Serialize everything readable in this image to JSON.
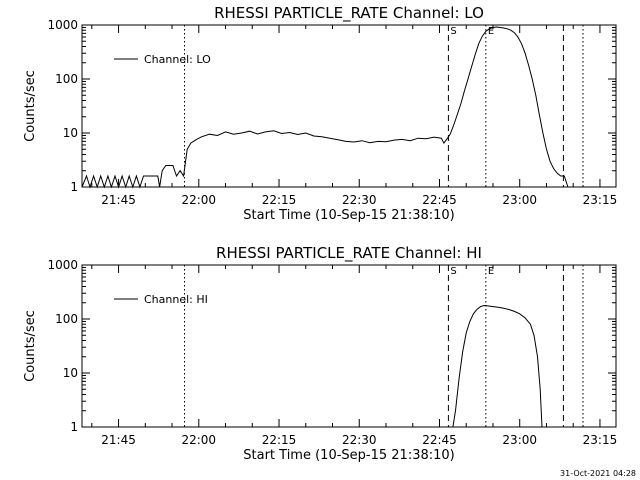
{
  "chart_data": [
    {
      "type": "line",
      "title": "RHESSI PARTICLE_RATE Channel: LO",
      "xlabel": "Start Time (10-Sep-15 21:38:10)",
      "ylabel": "Counts/sec",
      "y_scale": "log",
      "ylim": [
        1,
        1000
      ],
      "xlim": [
        "21:38:10",
        "23:18:00"
      ],
      "x_ticks": [
        "21:45",
        "22:00",
        "22:15",
        "22:30",
        "22:45",
        "23:00",
        "23:15"
      ],
      "y_ticks": [
        "1",
        "10",
        "100",
        "1000"
      ],
      "legend": {
        "position": "top-left",
        "entries": [
          "Channel: LO"
        ]
      },
      "markers": [
        {
          "label": "S",
          "time": "22:46:40",
          "style": "dashed"
        },
        {
          "label": "E",
          "time": "22:53:40",
          "style": "dotted"
        },
        {
          "label": "",
          "time": "21:57:20",
          "style": "dotted"
        },
        {
          "label": "",
          "time": "23:08:10",
          "style": "dashed"
        },
        {
          "label": "",
          "time": "23:11:50",
          "style": "dotted"
        }
      ],
      "series": [
        {
          "name": "Channel: LO",
          "points": [
            [
              "21:38:10",
              1
            ],
            [
              "21:39:00",
              1.6
            ],
            [
              "21:39:40",
              1
            ],
            [
              "21:40:20",
              1.6
            ],
            [
              "21:41:00",
              1
            ],
            [
              "21:41:40",
              1.6
            ],
            [
              "21:42:20",
              1
            ],
            [
              "21:43:00",
              1.6
            ],
            [
              "21:43:40",
              1
            ],
            [
              "21:44:20",
              1.6
            ],
            [
              "21:45:00",
              1
            ],
            [
              "21:45:40",
              1.6
            ],
            [
              "21:46:20",
              1
            ],
            [
              "21:47:00",
              1.6
            ],
            [
              "21:47:40",
              1
            ],
            [
              "21:48:20",
              1.6
            ],
            [
              "21:49:00",
              1
            ],
            [
              "21:49:40",
              1.6
            ],
            [
              "21:50:20",
              1.6
            ],
            [
              "21:51:00",
              1.6
            ],
            [
              "21:51:40",
              1.6
            ],
            [
              "21:52:20",
              1.6
            ],
            [
              "21:52:40",
              1
            ],
            [
              "21:53:10",
              2.0
            ],
            [
              "21:53:50",
              2.5
            ],
            [
              "21:54:30",
              2.5
            ],
            [
              "21:55:10",
              2.5
            ],
            [
              "21:55:50",
              1.6
            ],
            [
              "21:56:30",
              2.0
            ],
            [
              "21:57:10",
              1.6
            ],
            [
              "21:57:50",
              5.0
            ],
            [
              "21:58:30",
              6.5
            ],
            [
              "21:59:30",
              7.5
            ],
            [
              "22:00:30",
              8.5
            ],
            [
              "22:02:00",
              9.5
            ],
            [
              "22:03:30",
              9.0
            ],
            [
              "22:05:00",
              10.5
            ],
            [
              "22:06:30",
              9.5
            ],
            [
              "22:08:00",
              10.0
            ],
            [
              "22:09:30",
              10.8
            ],
            [
              "22:11:00",
              9.6
            ],
            [
              "22:12:30",
              10.5
            ],
            [
              "22:14:00",
              11.0
            ],
            [
              "22:15:30",
              9.8
            ],
            [
              "22:17:00",
              10.2
            ],
            [
              "22:18:30",
              9.4
            ],
            [
              "22:20:00",
              10.0
            ],
            [
              "22:21:30",
              8.8
            ],
            [
              "22:23:00",
              8.5
            ],
            [
              "22:24:30",
              8.0
            ],
            [
              "22:26:00",
              7.5
            ],
            [
              "22:27:30",
              7.0
            ],
            [
              "22:29:00",
              6.8
            ],
            [
              "22:30:30",
              7.2
            ],
            [
              "22:32:00",
              6.6
            ],
            [
              "22:33:30",
              7.0
            ],
            [
              "22:35:00",
              6.9
            ],
            [
              "22:36:30",
              7.4
            ],
            [
              "22:38:00",
              7.6
            ],
            [
              "22:39:30",
              7.2
            ],
            [
              "22:41:00",
              8.0
            ],
            [
              "22:42:30",
              7.8
            ],
            [
              "22:44:00",
              8.4
            ],
            [
              "22:45:20",
              8.0
            ],
            [
              "22:45:50",
              6.5
            ],
            [
              "22:46:30",
              8.0
            ],
            [
              "22:47:00",
              9.5
            ],
            [
              "22:47:40",
              14
            ],
            [
              "22:48:20",
              22
            ],
            [
              "22:49:00",
              35
            ],
            [
              "22:49:40",
              60
            ],
            [
              "22:50:20",
              100
            ],
            [
              "22:51:00",
              170
            ],
            [
              "22:51:40",
              280
            ],
            [
              "22:52:20",
              450
            ],
            [
              "22:53:00",
              620
            ],
            [
              "22:53:40",
              760
            ],
            [
              "22:54:20",
              850
            ],
            [
              "22:55:00",
              900
            ],
            [
              "22:55:40",
              920
            ],
            [
              "22:56:20",
              900
            ],
            [
              "22:57:00",
              880
            ],
            [
              "22:57:40",
              850
            ],
            [
              "22:58:20",
              800
            ],
            [
              "22:59:00",
              720
            ],
            [
              "22:59:40",
              600
            ],
            [
              "23:00:20",
              450
            ],
            [
              "23:01:00",
              300
            ],
            [
              "23:01:40",
              180
            ],
            [
              "23:02:20",
              100
            ],
            [
              "23:03:00",
              50
            ],
            [
              "23:03:40",
              22
            ],
            [
              "23:04:20",
              10
            ],
            [
              "23:05:00",
              5
            ],
            [
              "23:05:40",
              3
            ],
            [
              "23:06:20",
              2.2
            ],
            [
              "23:07:00",
              1.8
            ],
            [
              "23:07:40",
              1.6
            ],
            [
              "23:08:20",
              1.6
            ],
            [
              "23:09:00",
              1
            ],
            [
              "23:10:00",
              1
            ],
            [
              "23:11:00",
              1
            ],
            [
              "23:12:00",
              1
            ]
          ]
        }
      ]
    },
    {
      "type": "line",
      "title": "RHESSI PARTICLE_RATE Channel: HI",
      "xlabel": "Start Time (10-Sep-15 21:38:10)",
      "ylabel": "Counts/sec",
      "y_scale": "log",
      "ylim": [
        1,
        1000
      ],
      "xlim": [
        "21:38:10",
        "23:18:00"
      ],
      "x_ticks": [
        "21:45",
        "22:00",
        "22:15",
        "22:30",
        "22:45",
        "23:00",
        "23:15"
      ],
      "y_ticks": [
        "1",
        "10",
        "100",
        "1000"
      ],
      "legend": {
        "position": "top-left",
        "entries": [
          "Channel: HI"
        ]
      },
      "markers": [
        {
          "label": "S",
          "time": "22:46:40",
          "style": "dashed"
        },
        {
          "label": "E",
          "time": "22:53:40",
          "style": "dotted"
        },
        {
          "label": "",
          "time": "21:57:20",
          "style": "dotted"
        },
        {
          "label": "",
          "time": "23:08:10",
          "style": "dashed"
        },
        {
          "label": "",
          "time": "23:11:50",
          "style": "dotted"
        }
      ],
      "series": [
        {
          "name": "Channel: HI",
          "points": [
            [
              "22:47:30",
              1
            ],
            [
              "22:48:00",
              2
            ],
            [
              "22:48:40",
              8
            ],
            [
              "22:49:20",
              25
            ],
            [
              "22:50:00",
              55
            ],
            [
              "22:50:40",
              90
            ],
            [
              "22:51:20",
              125
            ],
            [
              "22:52:00",
              150
            ],
            [
              "22:52:40",
              170
            ],
            [
              "22:53:20",
              178
            ],
            [
              "22:54:00",
              175
            ],
            [
              "22:55:00",
              170
            ],
            [
              "22:56:00",
              165
            ],
            [
              "22:57:00",
              158
            ],
            [
              "22:58:00",
              150
            ],
            [
              "22:59:00",
              138
            ],
            [
              "23:00:00",
              125
            ],
            [
              "23:01:00",
              105
            ],
            [
              "23:02:00",
              80
            ],
            [
              "23:02:40",
              50
            ],
            [
              "23:03:20",
              20
            ],
            [
              "23:03:50",
              5
            ],
            [
              "23:04:10",
              1
            ]
          ]
        }
      ]
    }
  ],
  "footer": {
    "timestamp": "31-Oct-2021 04:28"
  }
}
